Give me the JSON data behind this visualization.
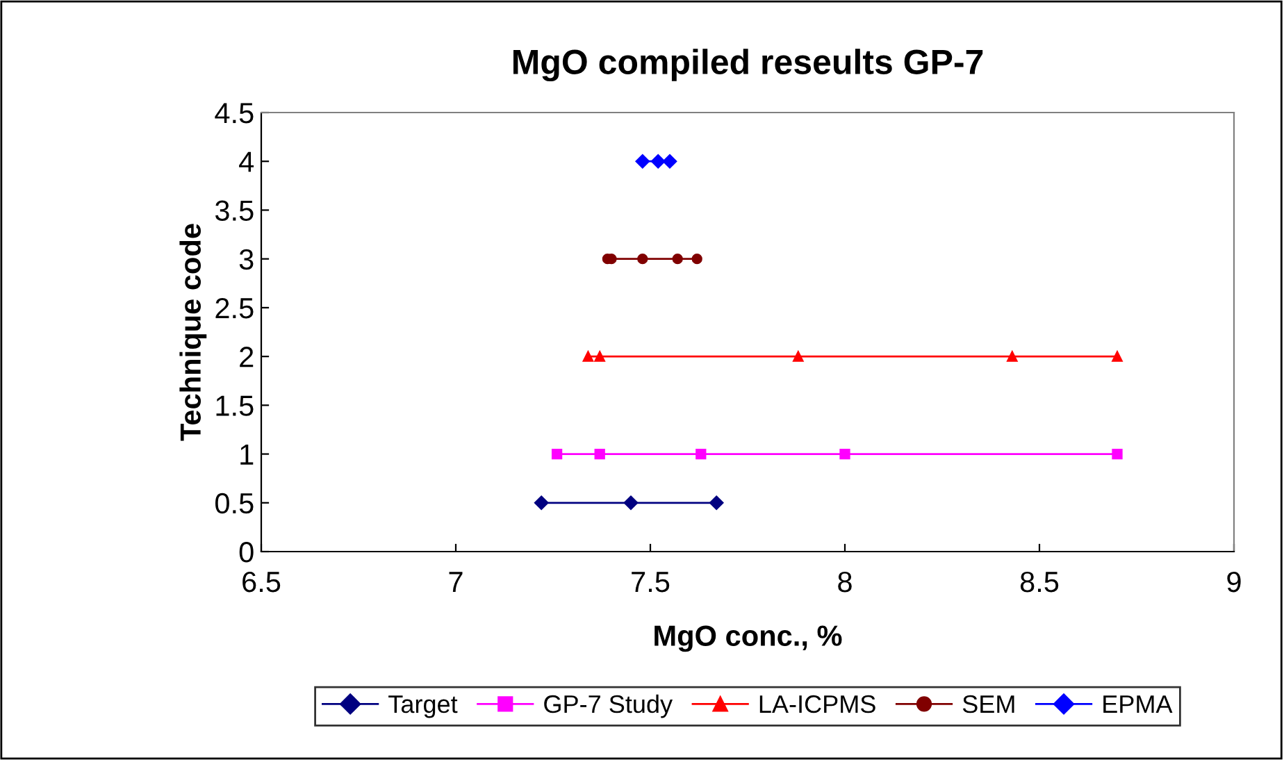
{
  "chart_data": {
    "type": "line",
    "title": "MgO compiled reseults GP-7",
    "xlabel": "MgO conc., %",
    "ylabel": "Technique code",
    "xlim": [
      6.5,
      9
    ],
    "xticks": [
      6.5,
      7,
      7.5,
      8,
      8.5,
      9
    ],
    "ylim": [
      0,
      4.5
    ],
    "yticks": [
      0,
      0.5,
      1,
      1.5,
      2,
      2.5,
      3,
      3.5,
      4,
      4.5
    ],
    "grid": false,
    "legend": "bottom",
    "series": [
      {
        "name": "Target",
        "color": "#000080",
        "marker": "diamond",
        "x": [
          7.22,
          7.45,
          7.67
        ],
        "values": [
          0.5,
          0.5,
          0.5
        ]
      },
      {
        "name": "GP-7 Study",
        "color": "#ff00ff",
        "marker": "square",
        "x": [
          7.26,
          7.37,
          7.63,
          8.0,
          8.7
        ],
        "values": [
          1,
          1,
          1,
          1,
          1
        ]
      },
      {
        "name": "LA-ICPMS",
        "color": "#ff0000",
        "marker": "triangle",
        "x": [
          7.34,
          7.37,
          7.88,
          8.43,
          8.7
        ],
        "values": [
          2,
          2,
          2,
          2,
          2
        ]
      },
      {
        "name": "SEM",
        "color": "#800000",
        "marker": "circle",
        "x": [
          7.39,
          7.4,
          7.48,
          7.57,
          7.62
        ],
        "values": [
          3,
          3,
          3,
          3,
          3
        ]
      },
      {
        "name": "EPMA",
        "color": "#0000ff",
        "marker": "diamond",
        "x": [
          7.48,
          7.52,
          7.55
        ],
        "values": [
          4,
          4,
          4
        ]
      }
    ]
  }
}
